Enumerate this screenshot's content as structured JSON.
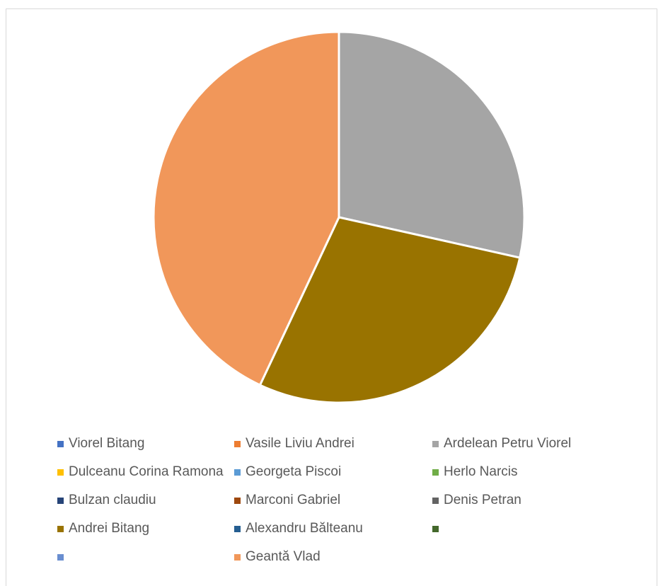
{
  "chart_data": {
    "type": "pie",
    "title": "",
    "legend_position": "bottom",
    "categories": [
      "Viorel Bitang",
      "Vasile Liviu Andrei",
      "Ardelean Petru Viorel",
      "Dulceanu Corina Ramona",
      "Georgeta Piscoi",
      "Herlo Narcis",
      "Bulzan claudiu",
      "Marconi Gabriel",
      "Denis Petran",
      "Andrei Bitang",
      "Alexandru Bălteanu",
      "",
      "",
      "Geantă Vlad"
    ],
    "values": [
      0,
      0,
      28.5,
      0,
      0,
      0,
      0,
      0,
      0,
      28.5,
      0,
      0,
      0,
      43
    ],
    "colors": [
      "#4472C4",
      "#ED7D31",
      "#A5A5A5",
      "#FFC000",
      "#5B9BD5",
      "#70AD47",
      "#264478",
      "#9E480E",
      "#636363",
      "#997300",
      "#255E91",
      "#43682B",
      "#698ED0",
      "#F1975A"
    ]
  }
}
